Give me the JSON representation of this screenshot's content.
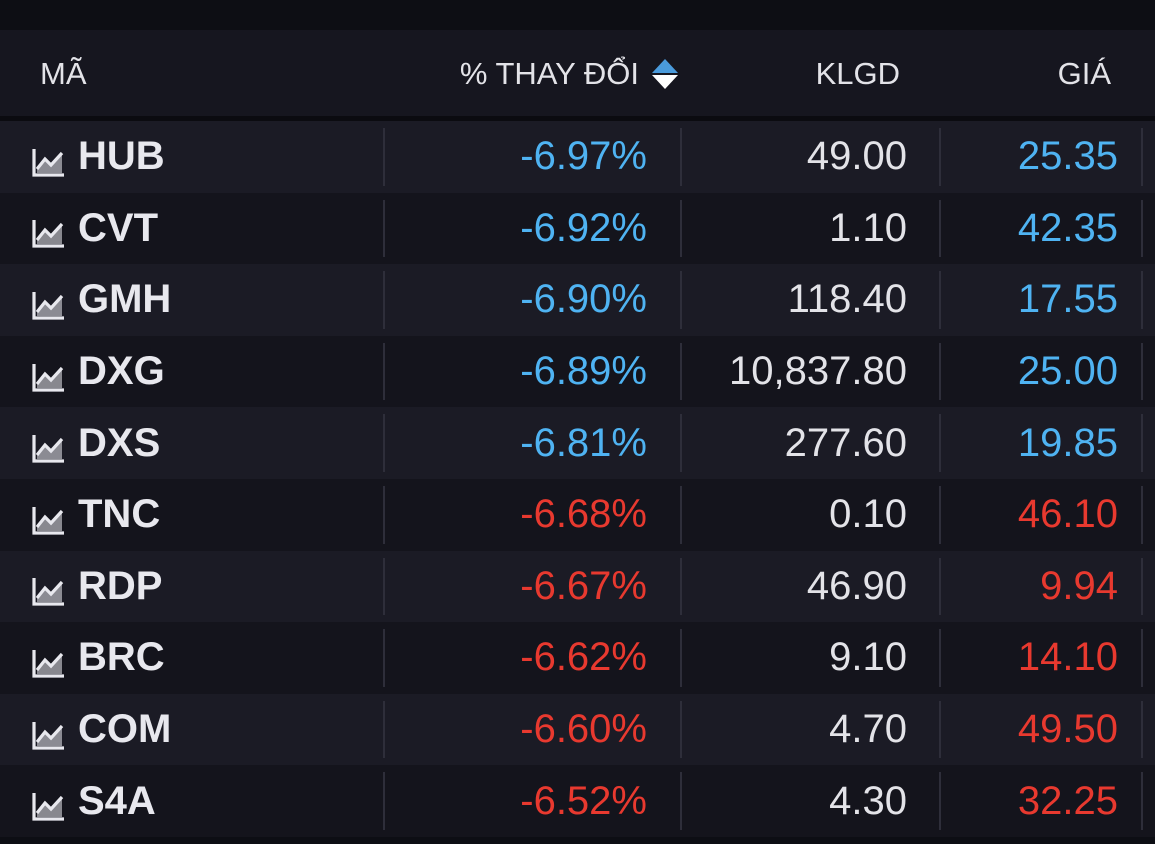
{
  "table": {
    "headers": {
      "symbol": "MÃ",
      "change": "% THAY ĐỔI",
      "volume": "KLGD",
      "price": "GIÁ"
    },
    "sort_icon": "sort-up-down-icon",
    "colors": {
      "blue": "#4fb3f2",
      "red": "#e8392f",
      "text": "#e3e3e8"
    },
    "rows": [
      {
        "symbol": "HUB",
        "change": "-6.97%",
        "volume": "49.00",
        "price": "25.35",
        "color": "blue"
      },
      {
        "symbol": "CVT",
        "change": "-6.92%",
        "volume": "1.10",
        "price": "42.35",
        "color": "blue"
      },
      {
        "symbol": "GMH",
        "change": "-6.90%",
        "volume": "118.40",
        "price": "17.55",
        "color": "blue"
      },
      {
        "symbol": "DXG",
        "change": "-6.89%",
        "volume": "10,837.80",
        "price": "25.00",
        "color": "blue"
      },
      {
        "symbol": "DXS",
        "change": "-6.81%",
        "volume": "277.60",
        "price": "19.85",
        "color": "blue"
      },
      {
        "symbol": "TNC",
        "change": "-6.68%",
        "volume": "0.10",
        "price": "46.10",
        "color": "red"
      },
      {
        "symbol": "RDP",
        "change": "-6.67%",
        "volume": "46.90",
        "price": "9.94",
        "color": "red"
      },
      {
        "symbol": "BRC",
        "change": "-6.62%",
        "volume": "9.10",
        "price": "14.10",
        "color": "red"
      },
      {
        "symbol": "COM",
        "change": "-6.60%",
        "volume": "4.70",
        "price": "49.50",
        "color": "red"
      },
      {
        "symbol": "S4A",
        "change": "-6.52%",
        "volume": "4.30",
        "price": "32.25",
        "color": "red"
      }
    ]
  }
}
